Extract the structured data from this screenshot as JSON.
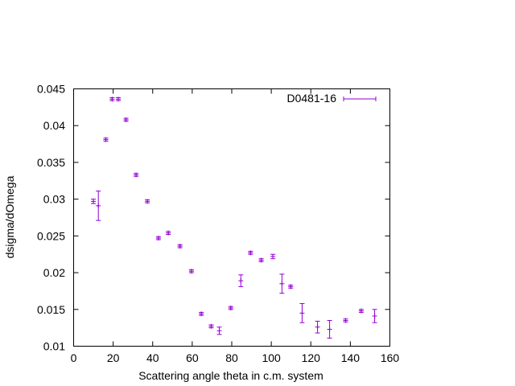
{
  "chart_data": {
    "type": "scatter",
    "xlabel": "Scattering angle theta in c.m. system",
    "ylabel": "dsigma/dOmega",
    "xlim": [
      0,
      160
    ],
    "ylim": [
      0.01,
      0.045
    ],
    "xticks": [
      0,
      20,
      40,
      60,
      80,
      100,
      120,
      140,
      160
    ],
    "yticks": [
      0.01,
      0.015,
      0.02,
      0.025,
      0.03,
      0.035,
      0.04,
      0.045
    ],
    "xtick_labels": [
      "0",
      "20",
      "40",
      "60",
      "80",
      "100",
      "120",
      "140",
      "160"
    ],
    "ytick_labels": [
      "0.01",
      "0.015",
      "0.02",
      "0.025",
      "0.03",
      "0.035",
      "0.04",
      "0.045"
    ],
    "grid": false,
    "legend_position": "top-right",
    "color": "#9400d3",
    "series": [
      {
        "name": "D0481-16",
        "points": [
          {
            "x": 10.0,
            "y": 0.0297,
            "err": 0.0003
          },
          {
            "x": 12.5,
            "y": 0.0291,
            "err": 0.002
          },
          {
            "x": 16.3,
            "y": 0.0381,
            "err": 0.0002
          },
          {
            "x": 19.5,
            "y": 0.0436,
            "err": 0.0002
          },
          {
            "x": 22.6,
            "y": 0.0436,
            "err": 0.0002
          },
          {
            "x": 26.5,
            "y": 0.0408,
            "err": 0.0002
          },
          {
            "x": 31.6,
            "y": 0.0333,
            "err": 0.0002
          },
          {
            "x": 37.3,
            "y": 0.0297,
            "err": 0.0002
          },
          {
            "x": 42.9,
            "y": 0.0247,
            "err": 0.0002
          },
          {
            "x": 47.9,
            "y": 0.0254,
            "err": 0.0002
          },
          {
            "x": 53.8,
            "y": 0.0236,
            "err": 0.0002
          },
          {
            "x": 59.6,
            "y": 0.0202,
            "err": 0.0002
          },
          {
            "x": 64.6,
            "y": 0.0144,
            "err": 0.0002
          },
          {
            "x": 69.6,
            "y": 0.0127,
            "err": 0.0002
          },
          {
            "x": 73.7,
            "y": 0.0121,
            "err": 0.0005
          },
          {
            "x": 79.5,
            "y": 0.0152,
            "err": 0.0002
          },
          {
            "x": 84.6,
            "y": 0.0189,
            "err": 0.0008
          },
          {
            "x": 89.5,
            "y": 0.0227,
            "err": 0.0002
          },
          {
            "x": 94.9,
            "y": 0.0217,
            "err": 0.0002
          },
          {
            "x": 100.8,
            "y": 0.0222,
            "err": 0.0003
          },
          {
            "x": 105.4,
            "y": 0.0185,
            "err": 0.0013
          },
          {
            "x": 109.8,
            "y": 0.0181,
            "err": 0.0002
          },
          {
            "x": 115.6,
            "y": 0.0145,
            "err": 0.0013
          },
          {
            "x": 123.4,
            "y": 0.0126,
            "err": 0.0008
          },
          {
            "x": 129.5,
            "y": 0.0123,
            "err": 0.0012
          },
          {
            "x": 137.6,
            "y": 0.0135,
            "err": 0.0002
          },
          {
            "x": 145.5,
            "y": 0.0148,
            "err": 0.0002
          },
          {
            "x": 152.3,
            "y": 0.0141,
            "err": 0.0009
          }
        ]
      }
    ]
  }
}
